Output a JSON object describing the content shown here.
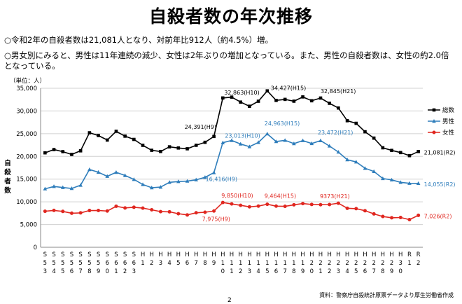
{
  "title": "自殺者数の年次推移",
  "bullets": [
    "○令和2年の自殺者数は21,081人となり、対前年比912人（約4.5%）増。",
    "○男女別にみると、男性は11年連続の減少、女性は2年ぶりの増加となっている。また、男性の自殺者数は、女性の約2.0倍となっている。"
  ],
  "source": "資料：警察庁自殺統計原票データより厚生労働省作成",
  "page_number": "2",
  "chart_data": {
    "type": "line",
    "ylabel": "自殺者数",
    "unit_label": "（単位：人）",
    "ylim": [
      0,
      35000
    ],
    "yticks": [
      "0",
      "5,000",
      "10,000",
      "15,000",
      "20,000",
      "25,000",
      "30,000",
      "35,000"
    ],
    "grid": true,
    "legend_position": "right",
    "categories": [
      "S53",
      "S54",
      "S55",
      "S56",
      "S57",
      "S58",
      "S59",
      "S60",
      "S61",
      "S62",
      "S63",
      "H1",
      "H2",
      "H3",
      "H4",
      "H5",
      "H6",
      "H7",
      "H8",
      "H9",
      "H10",
      "H11",
      "H12",
      "H13",
      "H14",
      "H15",
      "H16",
      "H17",
      "H18",
      "H19",
      "H20",
      "H21",
      "H22",
      "H23",
      "H24",
      "H25",
      "H26",
      "H27",
      "H28",
      "H29",
      "H30",
      "R1",
      "R2"
    ],
    "category_labels": [
      [
        "S",
        "5",
        "3"
      ],
      [
        "S",
        "5",
        "4"
      ],
      [
        "S",
        "5",
        "5"
      ],
      [
        "S",
        "5",
        "6"
      ],
      [
        "S",
        "5",
        "7"
      ],
      [
        "S",
        "5",
        "8"
      ],
      [
        "S",
        "5",
        "9"
      ],
      [
        "S",
        "6",
        "0"
      ],
      [
        "S",
        "6",
        "1"
      ],
      [
        "S",
        "6",
        "2"
      ],
      [
        "S",
        "6",
        "3"
      ],
      [
        "H",
        "1",
        ""
      ],
      [
        "H",
        "2",
        ""
      ],
      [
        "H",
        "3",
        ""
      ],
      [
        "H",
        "4",
        ""
      ],
      [
        "H",
        "5",
        ""
      ],
      [
        "H",
        "6",
        ""
      ],
      [
        "H",
        "7",
        ""
      ],
      [
        "H",
        "8",
        ""
      ],
      [
        "H",
        "9",
        ""
      ],
      [
        "H",
        "1",
        "0"
      ],
      [
        "H",
        "1",
        "1"
      ],
      [
        "H",
        "1",
        "2"
      ],
      [
        "H",
        "1",
        "3"
      ],
      [
        "H",
        "1",
        "4"
      ],
      [
        "H",
        "1",
        "5"
      ],
      [
        "H",
        "1",
        "6"
      ],
      [
        "H",
        "1",
        "7"
      ],
      [
        "H",
        "1",
        "8"
      ],
      [
        "H",
        "1",
        "9"
      ],
      [
        "H",
        "2",
        "0"
      ],
      [
        "H",
        "2",
        "1"
      ],
      [
        "H",
        "2",
        "2"
      ],
      [
        "H",
        "2",
        "3"
      ],
      [
        "H",
        "2",
        "4"
      ],
      [
        "H",
        "2",
        "5"
      ],
      [
        "H",
        "2",
        "6"
      ],
      [
        "H",
        "2",
        "7"
      ],
      [
        "H",
        "2",
        "8"
      ],
      [
        "H",
        "2",
        "9"
      ],
      [
        "H",
        "3",
        "0"
      ],
      [
        "R",
        "1",
        ""
      ],
      [
        "R",
        "2",
        ""
      ]
    ],
    "series": [
      {
        "name": "総数",
        "color": "#000000",
        "marker": "square",
        "values": [
          20788,
          21503,
          21048,
          20434,
          21228,
          25202,
          24596,
          23599,
          25524,
          24460,
          23742,
          22436,
          21346,
          21084,
          22104,
          21851,
          21679,
          22445,
          23104,
          24391,
          32863,
          33048,
          31957,
          31042,
          32143,
          34427,
          32325,
          32552,
          32155,
          33093,
          32249,
          32845,
          31690,
          30651,
          27858,
          27283,
          25427,
          24025,
          21897,
          21321,
          20840,
          20169,
          21081
        ]
      },
      {
        "name": "男性",
        "color": "#2e7dbb",
        "marker": "triangle",
        "values": [
          12859,
          13386,
          13155,
          12942,
          13654,
          17116,
          16508,
          15624,
          16497,
          15802,
          14934,
          13818,
          13102,
          13242,
          14296,
          14468,
          14560,
          14853,
          15393,
          16416,
          23013,
          23512,
          22727,
          22144,
          23080,
          24963,
          23272,
          23540,
          22813,
          23478,
          22831,
          23472,
          22283,
          20955,
          19273,
          18787,
          17386,
          16681,
          15121,
          14826,
          14290,
          14078,
          14055
        ]
      },
      {
        "name": "女性",
        "color": "#e0261f",
        "marker": "circle",
        "values": [
          7929,
          8117,
          7893,
          7492,
          7574,
          8086,
          8088,
          7975,
          9027,
          8658,
          8808,
          8618,
          8244,
          7842,
          7808,
          7383,
          7119,
          7592,
          7711,
          7975,
          9850,
          9536,
          9230,
          8898,
          9063,
          9464,
          9053,
          9012,
          9342,
          9615,
          9418,
          9373,
          9407,
          9696,
          8585,
          8496,
          8041,
          7344,
          6776,
          6495,
          6550,
          6091,
          7026
        ]
      }
    ],
    "annotations": [
      {
        "text": "32,863(H10)",
        "series": 0,
        "index": 20,
        "dx": 2,
        "dy": -5
      },
      {
        "text": "34,427(H15)",
        "series": 0,
        "index": 25,
        "dx": 5,
        "dy": -1
      },
      {
        "text": "32,845(H21)",
        "series": 0,
        "index": 31,
        "dx": 0,
        "dy": -7
      },
      {
        "text": "24,391(H9)",
        "series": 0,
        "index": 19,
        "dx": -42,
        "dy": -11
      },
      {
        "text": "21,081(R2)",
        "series": 0,
        "index": 42,
        "dx": 8,
        "dy": 4
      },
      {
        "text": "23,013(H10)",
        "series": 1,
        "index": 20,
        "dx": 3,
        "dy": -7
      },
      {
        "text": "24,963(H15)",
        "series": 1,
        "index": 25,
        "dx": -4,
        "dy": -12
      },
      {
        "text": "23,472(H21)",
        "series": 1,
        "index": 31,
        "dx": -4,
        "dy": -9
      },
      {
        "text": "16,416(H9)",
        "series": 1,
        "index": 19,
        "dx": -12,
        "dy": 12
      },
      {
        "text": "14,055(R2)",
        "series": 1,
        "index": 42,
        "dx": 8,
        "dy": 4
      },
      {
        "text": "9,850(H10)",
        "series": 2,
        "index": 20,
        "dx": -2,
        "dy": -7
      },
      {
        "text": "9,464(H15)",
        "series": 2,
        "index": 25,
        "dx": -4,
        "dy": -9
      },
      {
        "text": "9373(H21)",
        "series": 2,
        "index": 31,
        "dx": -1,
        "dy": -9
      },
      {
        "text": "7,975(H9)",
        "series": 2,
        "index": 19,
        "dx": -17,
        "dy": 14
      },
      {
        "text": "7,026(R2)",
        "series": 2,
        "index": 42,
        "dx": 8,
        "dy": 4
      }
    ]
  }
}
